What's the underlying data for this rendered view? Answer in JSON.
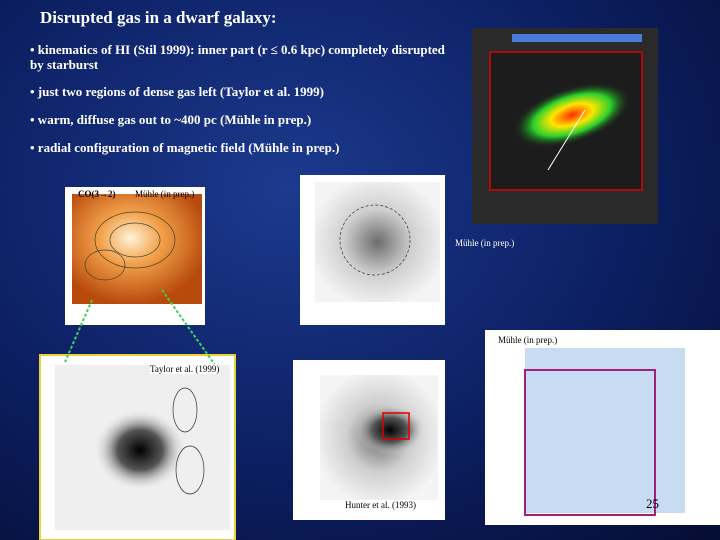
{
  "title": "Disrupted gas in a  dwarf galaxy:",
  "bullets": [
    "• kinematics of HI (Stil 1999): inner part (r ≤ 0.6 kpc) completely disrupted by starburst",
    "• just two regions of dense gas left (Taylor et al. 1999)",
    "• warm, diffuse gas out to  ~400 pc (Mühle in prep.)",
    "• radial configuration of magnetic field (Mühle in prep.)"
  ],
  "captions": {
    "co": "CO(3→2)",
    "co_ref": "Mühle  (in prep.)",
    "gray_ref": "Mühle  (in prep.)",
    "pol_ref": "Mühle  (in prep.)",
    "taylor": "Taylor  et al.  (1999)",
    "hunter": "Hunter et al.  (1993)"
  },
  "page_number": "25"
}
